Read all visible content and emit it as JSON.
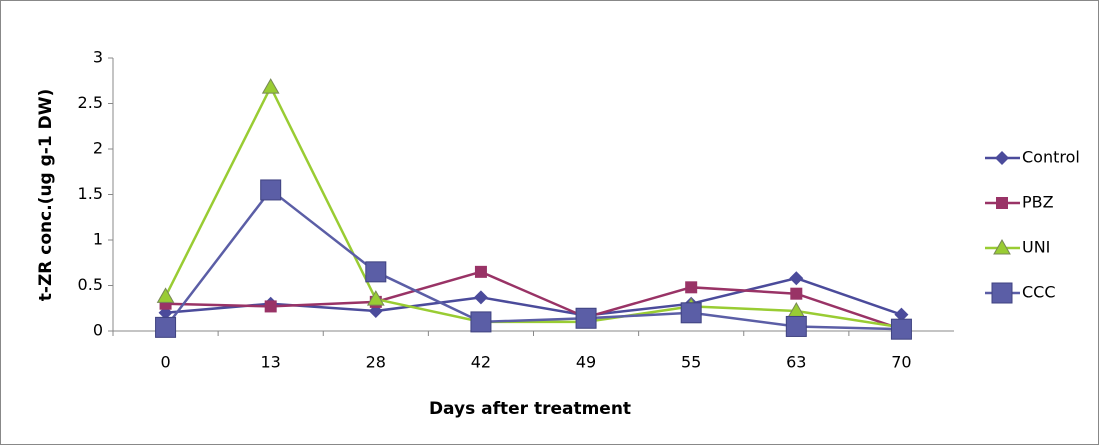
{
  "chart_data": {
    "type": "line",
    "xlabel": "Days after treatment",
    "ylabel": "t-ZR conc.(ug g-1 DW)",
    "categories": [
      "0",
      "13",
      "28",
      "42",
      "49",
      "55",
      "63",
      "70"
    ],
    "ylim": [
      0,
      3
    ],
    "yticks": [
      0,
      0.5,
      1,
      1.5,
      2,
      2.5,
      3
    ],
    "legend": "right",
    "series": [
      {
        "name": "Control",
        "color": "#4b4b9b",
        "marker": "diamond",
        "values": [
          0.2,
          0.3,
          0.22,
          0.37,
          0.17,
          0.3,
          0.58,
          0.18
        ]
      },
      {
        "name": "PBZ",
        "color": "#993366",
        "marker": "square",
        "values": [
          0.3,
          0.27,
          0.32,
          0.65,
          0.15,
          0.48,
          0.41,
          0.02
        ]
      },
      {
        "name": "UNI",
        "color": "#99cc33",
        "marker": "triangle",
        "values": [
          0.38,
          2.68,
          0.35,
          0.1,
          0.1,
          0.27,
          0.22,
          0.04
        ]
      },
      {
        "name": "CCC",
        "color": "#5b5ea6",
        "marker": "bigsquare",
        "values": [
          0.04,
          1.55,
          0.65,
          0.1,
          0.14,
          0.2,
          0.05,
          0.02
        ]
      }
    ]
  }
}
